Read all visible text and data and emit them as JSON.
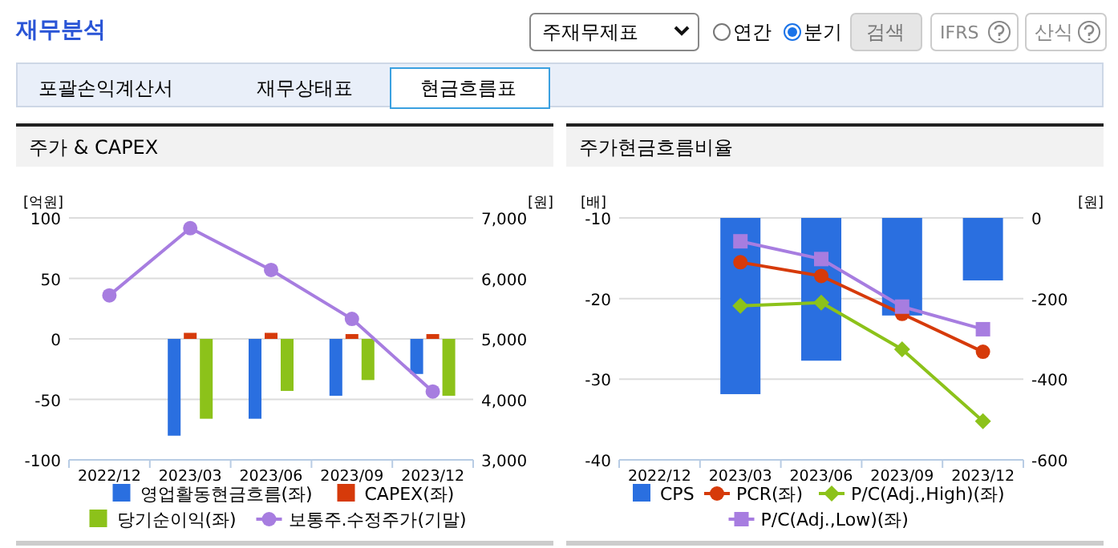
{
  "chart_data": [
    {
      "type": "other",
      "title": "재무분석",
      "annotations": [
        "주재무제표",
        "연간",
        "분기",
        "검색",
        "IFRS",
        "산식",
        "포괄손익계산서",
        "재무상태표",
        "현금흐름표"
      ]
    },
    {
      "type": "bar",
      "title": "주가 & CAPEX",
      "ylabel": "[억원]",
      "y2label": "[원]",
      "categories": [
        "2022/12",
        "2023/03",
        "2023/06",
        "2023/09",
        "2023/12"
      ],
      "ylim": [
        -100,
        100
      ],
      "yticks": [
        -100,
        -50,
        0,
        50,
        100
      ],
      "y2lim": [
        3000,
        7000
      ],
      "y2ticks": [
        {
          "value": 3000,
          "label": "3,000"
        },
        {
          "value": 4000,
          "label": "4,000"
        },
        {
          "value": 5000,
          "label": "5,000"
        },
        {
          "value": 6000,
          "label": "6,000"
        },
        {
          "value": 7000,
          "label": "7,000"
        }
      ],
      "grid": "y",
      "legend": "bottom",
      "series": [
        {
          "name": "영업활동현금흐름(좌)",
          "color": "#2a6fe0",
          "values": [
            null,
            -80,
            -66,
            -47,
            -29
          ]
        },
        {
          "name": "CAPEX(좌)",
          "color": "#d63a0a",
          "values": [
            null,
            5,
            5,
            4,
            4
          ]
        },
        {
          "name": "당기순이익(좌)",
          "color": "#8cc21a",
          "values": [
            null,
            -66,
            -43,
            -34,
            -47
          ]
        },
        {
          "name": "보통주.수정주가(기말)",
          "type": "line",
          "axis": "y2",
          "marker": "circle",
          "color": "#a77de0",
          "values": [
            5720,
            6830,
            6140,
            5330,
            4130
          ]
        }
      ]
    },
    {
      "type": "bar",
      "title": "주가현금흐름비율",
      "ylabel": "[배]",
      "y2label": "[원]",
      "categories": [
        "2022/12",
        "2023/03",
        "2023/06",
        "2023/09",
        "2023/12"
      ],
      "ylim": [
        -40,
        -10
      ],
      "yticks": [
        -40,
        -30,
        -20,
        -10
      ],
      "y2lim": [
        -600,
        0
      ],
      "y2ticks": [
        -600,
        -400,
        -200,
        0
      ],
      "grid": "y",
      "legend": "bottom",
      "series": [
        {
          "name": "CPS",
          "axis": "y2",
          "color": "#2a6fe0",
          "values": [
            null,
            -437,
            -354,
            -242,
            -155
          ]
        },
        {
          "name": "PCR(좌)",
          "type": "line",
          "marker": "circle",
          "color": "#d63a0a",
          "values": [
            null,
            -15.5,
            -17.2,
            -21.9,
            -26.6
          ]
        },
        {
          "name": "P/C(Adj.,High)(좌)",
          "type": "line",
          "marker": "diamond",
          "color": "#8cc21a",
          "values": [
            null,
            -20.9,
            -20.5,
            -26.3,
            -35.2
          ]
        },
        {
          "name": "P/C(Adj.,Low)(좌)",
          "type": "line",
          "marker": "square",
          "color": "#a77de0",
          "values": [
            null,
            -12.9,
            -15.1,
            -21.0,
            -23.8
          ]
        }
      ]
    }
  ]
}
